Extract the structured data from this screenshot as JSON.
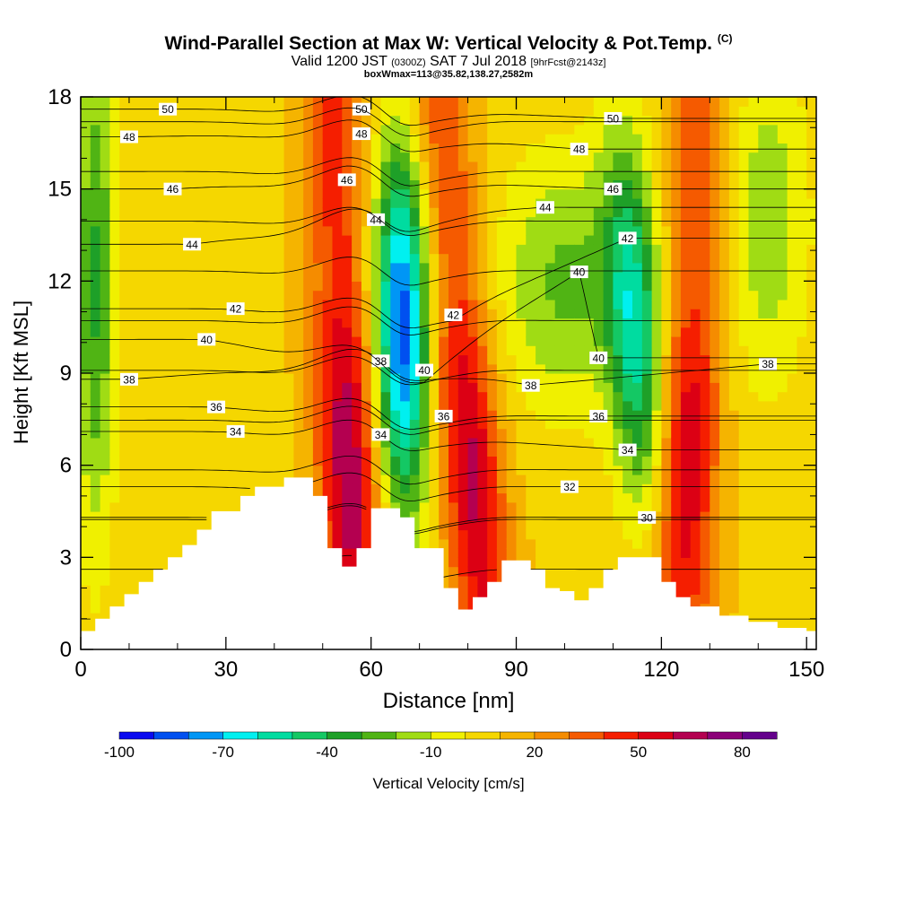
{
  "title": {
    "main": "Wind-Parallel Section at Max W: Vertical Velocity & Pot.Temp.",
    "main_mark": "(C)",
    "line2_a": "Valid 1200 JST",
    "line2_b": "(0300Z)",
    "line2_c": "SAT 7 Jul 2018",
    "line2_d": "[9hrFcst@2143z]",
    "line3": "boxWmax=113@35.82,138.27,2582m"
  },
  "colorbar": {
    "title": "Vertical Velocity [cm/s]",
    "levels": [
      -100,
      -90,
      -80,
      -70,
      -60,
      -50,
      -40,
      -30,
      -20,
      -10,
      0,
      10,
      20,
      30,
      40,
      50,
      60,
      70,
      80,
      90
    ],
    "tick_labels": [
      "-100",
      "-70",
      "-40",
      "-10",
      "20",
      "50",
      "80"
    ],
    "tick_values": [
      -100,
      -70,
      -40,
      -10,
      20,
      50,
      80
    ],
    "colors": [
      "#0a0af0",
      "#0050f0",
      "#0096f5",
      "#00f0f0",
      "#00dca0",
      "#14c864",
      "#1ea028",
      "#50b414",
      "#a0dc14",
      "#f0f000",
      "#f5d700",
      "#f5b400",
      "#f58c00",
      "#f55a00",
      "#f51e00",
      "#dc0014",
      "#b40050",
      "#8c0078",
      "#64008c"
    ]
  },
  "chart_data": {
    "type": "heatmap",
    "xlabel": "Distance [nm]",
    "ylabel": "Height [Kft MSL]",
    "xlim": [
      0,
      152
    ],
    "ylim": [
      0,
      18
    ],
    "x_ticks": [
      0,
      30,
      60,
      90,
      120,
      150
    ],
    "y_ticks": [
      0,
      3,
      6,
      9,
      12,
      15,
      18
    ],
    "field": "Vertical Velocity [cm/s] (shaded)",
    "contours": "Potential Temperature [C] (lines)",
    "updraft_bands": [
      {
        "x_top": 52,
        "x_bottom": 57,
        "peak_cm_s": 60
      },
      {
        "x_top": 74,
        "x_bottom": 84,
        "peak_cm_s": 55
      },
      {
        "x_top": 128,
        "x_bottom": 124,
        "peak_cm_s": 50
      }
    ],
    "downdraft_bands": [
      {
        "x_top": 66,
        "x_bottom": 67,
        "peak_cm_s": -95
      },
      {
        "x_top": 112,
        "x_bottom": 118,
        "peak_cm_s": -60
      }
    ],
    "terrain_heights_kft": [
      [
        0,
        0.6
      ],
      [
        3,
        1.0
      ],
      [
        6,
        1.4
      ],
      [
        9,
        1.8
      ],
      [
        12,
        2.2
      ],
      [
        15,
        2.6
      ],
      [
        18,
        3.0
      ],
      [
        21,
        3.4
      ],
      [
        24,
        3.9
      ],
      [
        27,
        4.5
      ],
      [
        33,
        5.0
      ],
      [
        36,
        5.3
      ],
      [
        42,
        5.6
      ],
      [
        48,
        5.0
      ],
      [
        51,
        3.3
      ],
      [
        54,
        2.7
      ],
      [
        57,
        3.3
      ],
      [
        60,
        4.6
      ],
      [
        66,
        4.3
      ],
      [
        69,
        3.3
      ],
      [
        75,
        2.0
      ],
      [
        78,
        1.3
      ],
      [
        81,
        1.7
      ],
      [
        84,
        2.2
      ],
      [
        87,
        2.9
      ],
      [
        93,
        2.6
      ],
      [
        96,
        2.0
      ],
      [
        99,
        1.9
      ],
      [
        102,
        1.6
      ],
      [
        105,
        2.0
      ],
      [
        108,
        2.6
      ],
      [
        111,
        3.0
      ],
      [
        117,
        3.0
      ],
      [
        120,
        2.2
      ],
      [
        123,
        1.7
      ],
      [
        126,
        1.4
      ],
      [
        132,
        1.1
      ],
      [
        138,
        0.9
      ],
      [
        144,
        0.7
      ],
      [
        150,
        0.6
      ],
      [
        152,
        0.6
      ]
    ],
    "theta_contours": [
      {
        "value": "30",
        "label_at": [
          117,
          4.3
        ]
      },
      {
        "value": "32",
        "label_at": [
          101,
          5.3
        ]
      },
      {
        "value": "34",
        "label_at": [
          32,
          7.1
        ],
        "label_at_2": [
          62,
          7.0
        ],
        "label_at_3": [
          113,
          6.5
        ]
      },
      {
        "value": "36",
        "label_at": [
          28,
          7.9
        ],
        "label_at_2": [
          75,
          7.6
        ],
        "label_at_3": [
          107,
          7.6
        ]
      },
      {
        "value": "38",
        "label_at": [
          10,
          8.8
        ],
        "label_at_2": [
          62,
          9.4
        ],
        "label_at_3": [
          93,
          8.6
        ],
        "label_at_4": [
          142,
          9.3
        ]
      },
      {
        "value": "40",
        "label_at": [
          26,
          10.1
        ],
        "label_at_2": [
          71,
          9.1
        ],
        "label_at_3": [
          107,
          9.5
        ],
        "label_at_4": [
          103,
          12.3
        ]
      },
      {
        "value": "42",
        "label_at": [
          32,
          11.1
        ],
        "label_at_2": [
          77,
          10.9
        ],
        "label_at_3": [
          113,
          13.4
        ]
      },
      {
        "value": "44",
        "label_at": [
          23,
          13.2
        ],
        "label_at_2": [
          61,
          14.0
        ],
        "label_at_3": [
          96,
          14.4
        ]
      },
      {
        "value": "46",
        "label_at": [
          19,
          15.0
        ],
        "label_at_2": [
          55,
          15.3
        ],
        "label_at_3": [
          110,
          15.0
        ]
      },
      {
        "value": "48",
        "label_at": [
          10,
          16.7
        ],
        "label_at_2": [
          58,
          16.8
        ],
        "label_at_3": [
          103,
          16.3
        ]
      },
      {
        "value": "50",
        "label_at": [
          18,
          17.6
        ],
        "label_at_2": [
          58,
          17.6
        ],
        "label_at_3": [
          110,
          17.3
        ]
      }
    ]
  }
}
